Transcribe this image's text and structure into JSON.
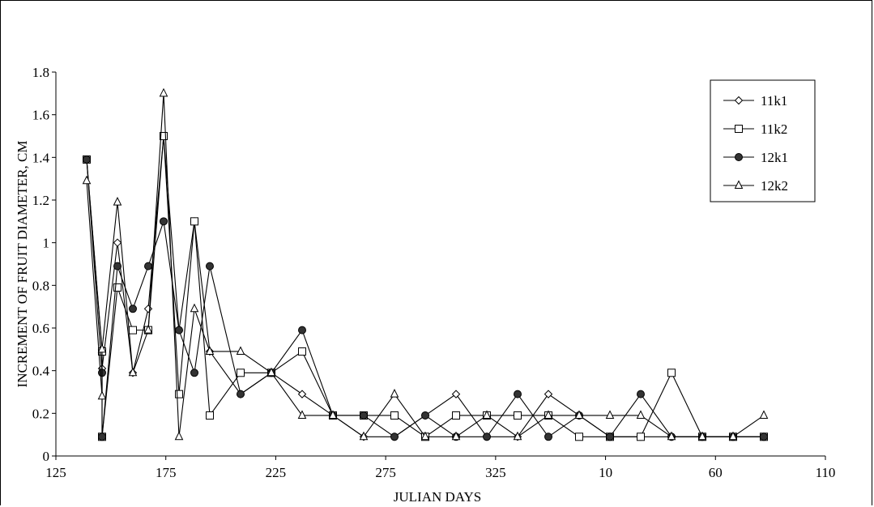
{
  "chart_data": {
    "type": "line",
    "xlabel": "JULIAN DAYS",
    "ylabel": "INCREMENT OF FRUIT DIAMETER, CM",
    "ylim": [
      0,
      1.8
    ],
    "y_ticks": [
      "0",
      "0.2",
      "0.4",
      "0.6",
      "0.8",
      "1",
      "1.2",
      "1.4",
      "1.6",
      "1.8"
    ],
    "x_ticks": [
      "125",
      "175",
      "225",
      "275",
      "325",
      "10",
      "60",
      "110"
    ],
    "x_note": "Julian day axis wraps past 365 (10, 60, 110 are days of the following year)",
    "grid": false,
    "legend_position": "top-right",
    "x": [
      139,
      146,
      146,
      153,
      160,
      167,
      174,
      181,
      188,
      195,
      209,
      223,
      237,
      251,
      265,
      279,
      293,
      307,
      321,
      335,
      349,
      363,
      12,
      26,
      40,
      54,
      68,
      82
    ],
    "series": [
      {
        "name": "11k1",
        "marker": "diamond",
        "values": [
          1.39,
          0.5,
          0.41,
          1.0,
          0.39,
          0.69,
          1.5,
          0.59,
          1.1,
          0.49,
          0.29,
          0.39,
          0.29,
          0.19,
          0.09,
          0.09,
          0.19,
          0.29,
          0.09,
          0.09,
          0.29,
          0.19,
          0.09,
          0.09,
          0.09,
          0.09,
          0.09,
          0.09
        ]
      },
      {
        "name": "11k2",
        "marker": "square",
        "values": [
          1.39,
          0.49,
          0.09,
          0.79,
          0.59,
          0.59,
          1.5,
          0.29,
          1.1,
          0.19,
          0.39,
          0.39,
          0.49,
          0.19,
          0.19,
          0.19,
          0.09,
          0.19,
          0.19,
          0.19,
          0.19,
          0.09,
          0.09,
          0.09,
          0.39,
          0.09,
          0.09,
          0.09
        ]
      },
      {
        "name": "12k1",
        "marker": "circle",
        "values": [
          1.39,
          0.39,
          0.09,
          0.89,
          0.69,
          0.89,
          1.1,
          0.59,
          0.39,
          0.89,
          0.29,
          0.39,
          0.59,
          0.19,
          0.19,
          0.09,
          0.19,
          0.09,
          0.09,
          0.29,
          0.09,
          0.19,
          0.09,
          0.29,
          0.09,
          0.09,
          0.09,
          0.09
        ]
      },
      {
        "name": "12k2",
        "marker": "triangle",
        "values": [
          1.29,
          0.28,
          0.5,
          1.19,
          0.39,
          0.59,
          1.7,
          0.09,
          0.69,
          0.49,
          0.49,
          0.39,
          0.19,
          0.19,
          0.09,
          0.29,
          0.09,
          0.09,
          0.19,
          0.09,
          0.19,
          0.19,
          0.19,
          0.19,
          0.09,
          0.09,
          0.09,
          0.19
        ]
      }
    ]
  }
}
